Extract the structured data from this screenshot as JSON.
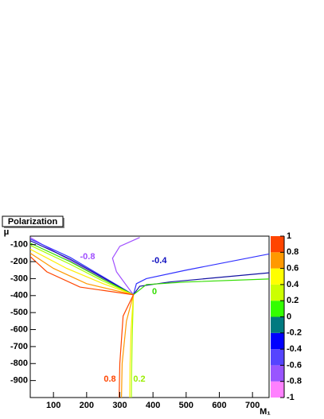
{
  "chart_data": {
    "type": "contour",
    "title": "Polarization",
    "x_label": "M₁",
    "y_label": "μ",
    "xlim": [
      30,
      750
    ],
    "ylim": [
      -1000,
      -50
    ],
    "xticks": [
      100,
      200,
      300,
      400,
      500,
      600,
      700
    ],
    "yticks": [
      -100,
      -200,
      -300,
      -400,
      -500,
      -600,
      -700,
      -800,
      -900
    ],
    "zlim": [
      -1,
      1
    ],
    "zticks": [
      -1,
      -0.8,
      -0.6,
      -0.4,
      -0.2,
      0,
      0.2,
      0.4,
      0.6,
      0.8,
      1
    ],
    "palette": [
      "#ff80ff",
      "#9955ff",
      "#5544ff",
      "#0000ff",
      "#007a80",
      "#33ff00",
      "#ccff00",
      "#ffff00",
      "#ff9900",
      "#ff4500"
    ],
    "series": [
      {
        "level": -0.8,
        "color": "#a050ff",
        "x": [
          30,
          120,
          230,
          341,
          320,
          290,
          278,
          300,
          360
        ],
        "y": [
          -58,
          -160,
          -280,
          -395,
          -340,
          -260,
          -180,
          -110,
          -58
        ]
      },
      {
        "level": -0.4,
        "color": "#3030ff",
        "x": [
          30,
          150,
          250,
          341,
          350,
          380,
          500,
          750
        ],
        "y": [
          -67,
          -175,
          -290,
          -395,
          -330,
          -300,
          -250,
          -155
        ]
      },
      {
        "level": -0.2,
        "color": "#1010a0",
        "x": [
          30,
          150,
          250,
          341,
          360,
          450,
          750
        ],
        "y": [
          -77,
          -185,
          -295,
          -395,
          -345,
          -320,
          -266
        ]
      },
      {
        "level": 0,
        "color": "#33dd00",
        "x": [
          30,
          150,
          250,
          341,
          380,
          500,
          750
        ],
        "y": [
          -91,
          -200,
          -305,
          -395,
          -335,
          -320,
          -302
        ]
      },
      {
        "level": 0.2,
        "color": "#aaff00",
        "x": [
          30,
          150,
          250,
          341,
          338,
          336,
          335
        ],
        "y": [
          -104,
          -215,
          -315,
          -395,
          -600,
          -800,
          -1000
        ]
      },
      {
        "level": 0.4,
        "color": "#ffee00",
        "x": [
          30,
          140,
          250,
          341,
          334,
          331,
          330
        ],
        "y": [
          -127,
          -240,
          -330,
          -395,
          -600,
          -800,
          -1000
        ]
      },
      {
        "level": 0.6,
        "color": "#ff9900",
        "x": [
          30,
          100,
          200,
          341,
          320,
          307,
          305
        ],
        "y": [
          -150,
          -240,
          -330,
          -395,
          -550,
          -800,
          -1000
        ]
      },
      {
        "level": 0.8,
        "color": "#ff4500",
        "x": [
          30,
          80,
          180,
          341,
          310,
          300,
          298
        ],
        "y": [
          -170,
          -260,
          -350,
          -395,
          -520,
          -800,
          -1000
        ]
      }
    ],
    "annotations": [
      "-0.8",
      "-0.4",
      "0",
      "0.8",
      "0.2"
    ],
    "annotation_colors": [
      "#a050ff",
      "#1010c0",
      "#33dd00",
      "#ff4500",
      "#99ee00"
    ]
  }
}
